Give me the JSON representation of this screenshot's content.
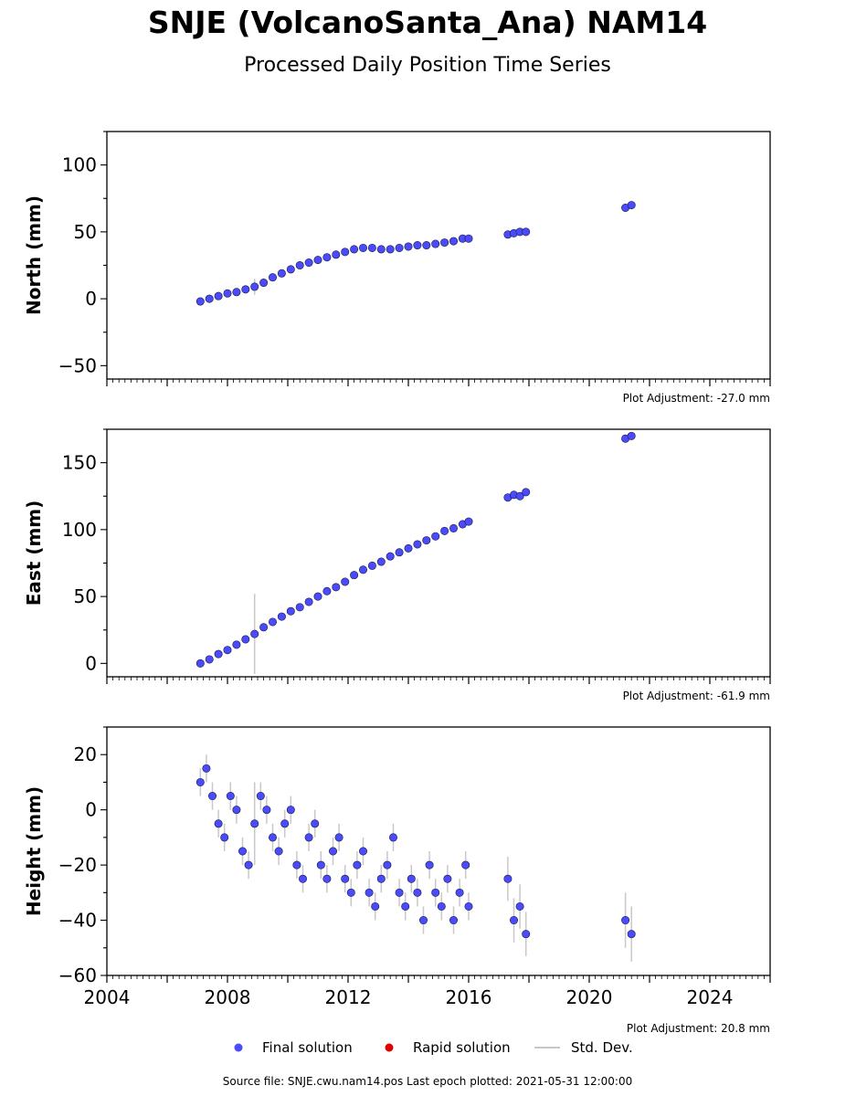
{
  "figure": {
    "title": "SNJE (VolcanoSanta_Ana) NAM14",
    "subtitle": "Processed Daily Position Time Series",
    "footer": "Source file: SNJE.cwu.nam14.pos  Last epoch plotted: 2021-05-31 12:00:00"
  },
  "legend": {
    "final": "Final solution",
    "rapid": "Rapid solution",
    "std": "Std. Dev."
  },
  "colors": {
    "final": "#4a4aff",
    "rapid": "#e00000",
    "std": "#c8c8c8",
    "edge": "#1a1a3a"
  },
  "chart_data": [
    {
      "type": "scatter",
      "ylabel": "North (mm)",
      "adjustment": "Plot Adjustment: -27.0 mm",
      "xlim": [
        2004,
        2026
      ],
      "ylim": [
        -60,
        125
      ],
      "yticks": [
        -50,
        0,
        50,
        100
      ],
      "ytick_labels": [
        "−50",
        "0",
        "50",
        "100"
      ],
      "series": [
        {
          "x": [
            2007.1,
            2007.4,
            2007.7,
            2008.0,
            2008.3,
            2008.6,
            2008.9,
            2009.2,
            2009.5,
            2009.8,
            2010.1,
            2010.4,
            2010.7,
            2011.0,
            2011.3,
            2011.6,
            2011.9,
            2012.2,
            2012.5,
            2012.8,
            2013.1,
            2013.4,
            2013.7,
            2014.0,
            2014.3,
            2014.6,
            2014.9,
            2015.2,
            2015.5,
            2015.8,
            2016.0,
            2017.3,
            2017.5,
            2017.7,
            2017.9,
            2021.2,
            2021.4
          ],
          "y": [
            -2,
            0,
            2,
            4,
            5,
            7,
            9,
            12,
            16,
            19,
            22,
            25,
            27,
            29,
            31,
            33,
            35,
            37,
            38,
            38,
            37,
            37,
            38,
            39,
            40,
            40,
            41,
            42,
            43,
            45,
            45,
            48,
            49,
            50,
            50,
            68,
            70
          ],
          "err": [
            3,
            3,
            3,
            3,
            3,
            3,
            6,
            3,
            3,
            3,
            3,
            3,
            3,
            3,
            3,
            3,
            3,
            3,
            3,
            3,
            3,
            3,
            3,
            3,
            3,
            3,
            3,
            3,
            3,
            3,
            3,
            3,
            3,
            3,
            3,
            3,
            3
          ]
        }
      ]
    },
    {
      "type": "scatter",
      "ylabel": "East (mm)",
      "adjustment": "Plot Adjustment: -61.9 mm",
      "xlim": [
        2004,
        2026
      ],
      "ylim": [
        -10,
        175
      ],
      "yticks": [
        0,
        50,
        100,
        150
      ],
      "ytick_labels": [
        "0",
        "50",
        "100",
        "150"
      ],
      "series": [
        {
          "x": [
            2007.1,
            2007.4,
            2007.7,
            2008.0,
            2008.3,
            2008.6,
            2008.9,
            2009.2,
            2009.5,
            2009.8,
            2010.1,
            2010.4,
            2010.7,
            2011.0,
            2011.3,
            2011.6,
            2011.9,
            2012.2,
            2012.5,
            2012.8,
            2013.1,
            2013.4,
            2013.7,
            2014.0,
            2014.3,
            2014.6,
            2014.9,
            2015.2,
            2015.5,
            2015.8,
            2016.0,
            2017.3,
            2017.5,
            2017.7,
            2017.9,
            2021.2,
            2021.4
          ],
          "y": [
            0,
            3,
            7,
            10,
            14,
            18,
            22,
            27,
            31,
            35,
            39,
            42,
            46,
            50,
            54,
            57,
            61,
            66,
            70,
            73,
            76,
            80,
            83,
            86,
            89,
            92,
            95,
            99,
            101,
            104,
            106,
            124,
            126,
            125,
            128,
            168,
            170
          ],
          "err": [
            3,
            3,
            3,
            3,
            3,
            3,
            30,
            3,
            3,
            3,
            3,
            3,
            3,
            3,
            3,
            3,
            3,
            3,
            3,
            3,
            3,
            3,
            3,
            3,
            3,
            3,
            3,
            3,
            3,
            3,
            3,
            3,
            3,
            3,
            3,
            3,
            3
          ]
        }
      ]
    },
    {
      "type": "scatter",
      "ylabel": "Height (mm)",
      "adjustment": "Plot Adjustment: 20.8 mm",
      "xlim": [
        2004,
        2026
      ],
      "ylim": [
        -60,
        30
      ],
      "yticks": [
        -60,
        -40,
        -20,
        0,
        20
      ],
      "ytick_labels": [
        "−60",
        "−40",
        "−20",
        "0",
        "20"
      ],
      "xticks": [
        2004,
        2008,
        2012,
        2016,
        2020,
        2024
      ],
      "xtick_labels": [
        "2004",
        "2008",
        "2012",
        "2016",
        "2020",
        "2024"
      ],
      "series": [
        {
          "x": [
            2007.1,
            2007.3,
            2007.5,
            2007.7,
            2007.9,
            2008.1,
            2008.3,
            2008.5,
            2008.7,
            2008.9,
            2009.1,
            2009.3,
            2009.5,
            2009.7,
            2009.9,
            2010.1,
            2010.3,
            2010.5,
            2010.7,
            2010.9,
            2011.1,
            2011.3,
            2011.5,
            2011.7,
            2011.9,
            2012.1,
            2012.3,
            2012.5,
            2012.7,
            2012.9,
            2013.1,
            2013.3,
            2013.5,
            2013.7,
            2013.9,
            2014.1,
            2014.3,
            2014.5,
            2014.7,
            2014.9,
            2015.1,
            2015.3,
            2015.5,
            2015.7,
            2015.9,
            2016.0,
            2017.3,
            2017.5,
            2017.7,
            2017.9,
            2021.2,
            2021.4
          ],
          "y": [
            10,
            15,
            5,
            -5,
            -10,
            5,
            0,
            -15,
            -20,
            -5,
            5,
            0,
            -10,
            -15,
            -5,
            0,
            -20,
            -25,
            -10,
            -5,
            -20,
            -25,
            -15,
            -10,
            -25,
            -30,
            -20,
            -15,
            -30,
            -35,
            -25,
            -20,
            -10,
            -30,
            -35,
            -25,
            -30,
            -40,
            -20,
            -30,
            -35,
            -25,
            -40,
            -30,
            -20,
            -35,
            -25,
            -40,
            -35,
            -45,
            -40,
            -45
          ],
          "err": [
            5,
            5,
            5,
            5,
            5,
            5,
            5,
            5,
            5,
            15,
            5,
            5,
            5,
            5,
            5,
            5,
            5,
            5,
            5,
            5,
            5,
            5,
            5,
            5,
            5,
            5,
            5,
            5,
            5,
            5,
            5,
            5,
            5,
            5,
            5,
            5,
            5,
            5,
            5,
            5,
            5,
            5,
            5,
            5,
            5,
            5,
            8,
            8,
            8,
            8,
            10,
            10
          ]
        }
      ]
    }
  ]
}
